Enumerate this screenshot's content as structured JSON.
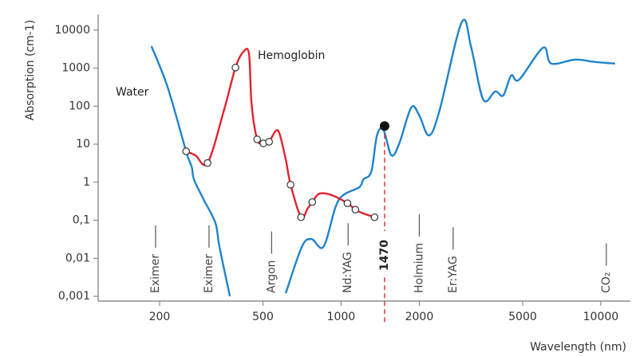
{
  "chart_data": {
    "type": "line",
    "xlabel": "Wavelength (nm)",
    "ylabel": "Absorption (cm-1)",
    "xscale": "log",
    "yscale": "log",
    "xlim": [
      116,
      13000
    ],
    "ylim": [
      0.00075,
      26000
    ],
    "xticks": [
      200,
      500,
      1000,
      2000,
      5000,
      10000
    ],
    "yticks": [
      10000,
      1000,
      100,
      10,
      1,
      {
        "value": 0.1,
        "label": "0,1"
      },
      {
        "value": 0.01,
        "label": "0,01"
      },
      {
        "value": 0.001,
        "label": "0,001"
      }
    ],
    "series": [
      {
        "name": "Water",
        "color": "#1f83cc",
        "x": [
          186,
          215,
          253,
          266,
          271,
          295,
          328,
          340,
          373,
          500,
          612,
          706,
          769,
          855,
          951,
          1020,
          1175,
          1220,
          1307,
          1374,
          1455,
          1561,
          1675,
          1862,
          2000,
          2178,
          2388,
          2912,
          3170,
          3524,
          3918,
          4207,
          4517,
          4850,
          5998,
          6440,
          7962,
          9506,
          11350
        ],
        "values": [
          3800,
          310,
          6.5,
          2.5,
          1.2,
          0.36,
          0.085,
          0.02,
          0.001,
          null,
          0.0012,
          0.02,
          0.032,
          0.02,
          0.22,
          0.46,
          0.74,
          1.2,
          1.9,
          17,
          24,
          5.1,
          10.5,
          92,
          57,
          17,
          73,
          16000,
          3460,
          150,
          243,
          191,
          640,
          500,
          3460,
          1320,
          1675,
          1450,
          1320
        ]
      },
      {
        "name": "Hemoglobin",
        "color": "#e3222b",
        "x": [
          253,
          275,
          306,
          353,
          392,
          421,
          442,
          452,
          475,
          502,
          528,
          559,
          579,
          612,
          639,
          701,
          742,
          774,
          825,
          918,
          1058,
          1135,
          1220,
          1345
        ],
        "values": [
          6.5,
          5.1,
          3.2,
          73,
          1035,
          2720,
          2350,
          118,
          13.4,
          10.5,
          11.6,
          22,
          19,
          4.0,
          0.86,
          0.12,
          0.2,
          0.3,
          0.5,
          0.46,
          0.28,
          0.19,
          0.15,
          0.12
        ],
        "markers": [
          true,
          false,
          true,
          false,
          true,
          false,
          false,
          false,
          true,
          true,
          true,
          false,
          false,
          false,
          true,
          true,
          false,
          true,
          false,
          false,
          true,
          true,
          false,
          true
        ]
      }
    ],
    "lasers": [
      {
        "label": "Eximer",
        "wavelength": 193
      },
      {
        "label": "Eximer",
        "wavelength": 310
      },
      {
        "label": "Argon",
        "wavelength": 540
      },
      {
        "label": "Nd:YAG",
        "wavelength": 1064
      },
      {
        "label": "Holmium",
        "wavelength": 2000
      },
      {
        "label": "Er:YAG",
        "wavelength": 2700
      },
      {
        "label": "CO₂",
        "wavelength": 10500
      }
    ],
    "highlight": {
      "wavelength": 1470,
      "absorption": 30,
      "color": "#e3222b"
    }
  }
}
